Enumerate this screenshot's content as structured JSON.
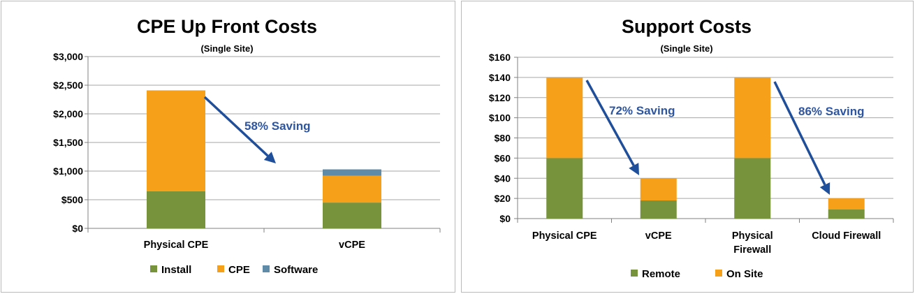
{
  "colors": {
    "install": "#77933c",
    "cpe": "#f6a01a",
    "software": "#5f8aa8",
    "remote": "#77933c",
    "onsite": "#f6a01a",
    "arrow": "#1f4e9a",
    "annotation": "#2d55a0"
  },
  "chart_data": [
    {
      "type": "bar",
      "stacked": true,
      "title": "CPE Up Front Costs",
      "subtitle": "(Single Site)",
      "categories": [
        "Physical CPE",
        "vCPE"
      ],
      "series": [
        {
          "name": "Install",
          "values": [
            650,
            450
          ]
        },
        {
          "name": "CPE",
          "values": [
            1760,
            470
          ]
        },
        {
          "name": "Software",
          "values": [
            0,
            110
          ]
        }
      ],
      "ylim": [
        0,
        3000
      ],
      "yticks": [
        "$0",
        "$500",
        "$1,000",
        "$1,500",
        "$2,000",
        "$2,500",
        "$3,000"
      ],
      "grid": true,
      "legend": "bottom",
      "annotations": [
        {
          "text": "58% Saving",
          "from": "Physical CPE",
          "to": "vCPE"
        }
      ]
    },
    {
      "type": "bar",
      "stacked": true,
      "title": "Support Costs",
      "subtitle": "(Single Site)",
      "categories": [
        "Physical CPE",
        "vCPE",
        "Physical Firewall",
        "Cloud Firewall"
      ],
      "series": [
        {
          "name": "Remote",
          "values": [
            60,
            18,
            60,
            9
          ]
        },
        {
          "name": "On Site",
          "values": [
            80,
            22,
            80,
            11
          ]
        }
      ],
      "ylim": [
        0,
        160
      ],
      "yticks": [
        "$0",
        "$20",
        "$40",
        "$60",
        "$80",
        "$100",
        "$120",
        "$140",
        "$160"
      ],
      "grid": true,
      "legend": "bottom",
      "annotations": [
        {
          "text": "72% Saving",
          "from": "Physical CPE",
          "to": "vCPE"
        },
        {
          "text": "86% Saving",
          "from": "Physical Firewall",
          "to": "Cloud Firewall"
        }
      ]
    }
  ]
}
